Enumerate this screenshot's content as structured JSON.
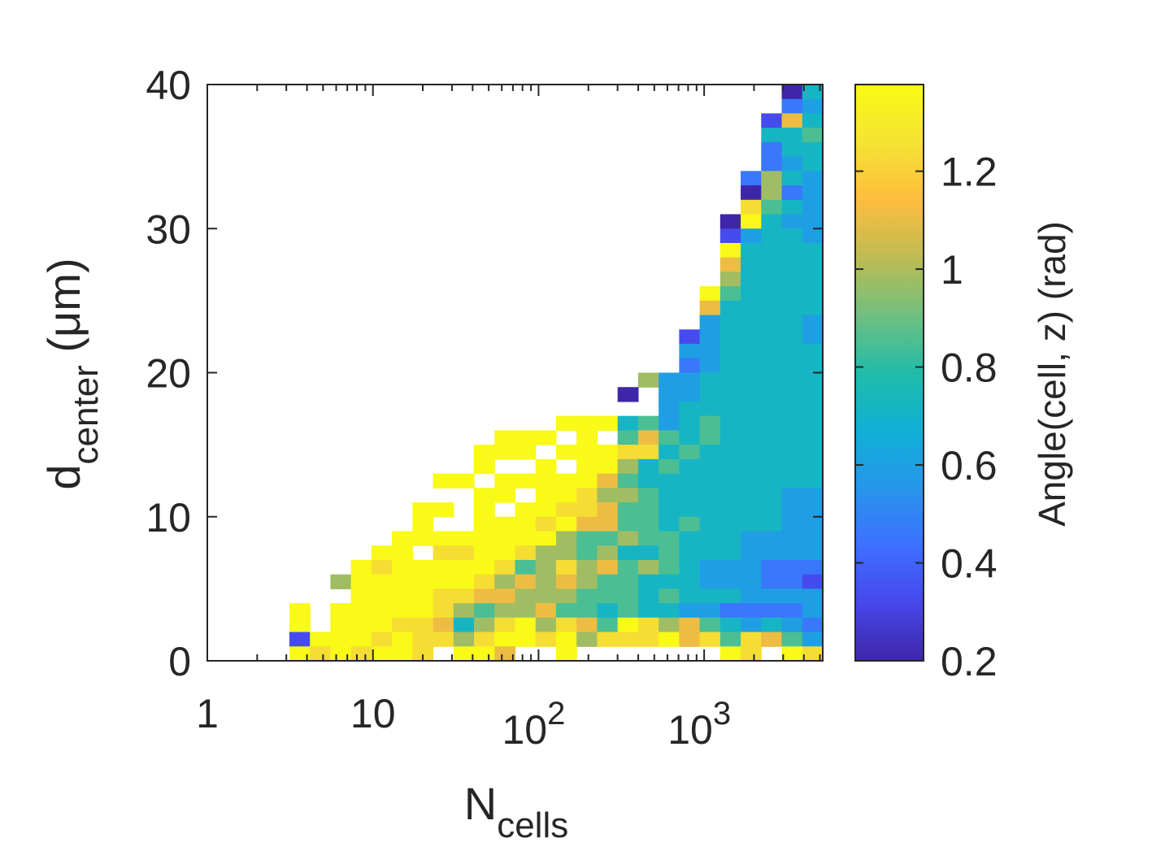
{
  "chart_data": {
    "type": "heatmap",
    "xlabel": {
      "main": "N",
      "sub": "cells"
    },
    "ylabel": {
      "main": "d",
      "sub": "center",
      "unit": " (μm)"
    },
    "colorbar_label": "Angle(cell, z) (rad)",
    "x_scale": "log",
    "xlim": [
      1,
      5200
    ],
    "ylim": [
      0,
      40
    ],
    "x_ticks": [
      {
        "value": 1,
        "base": "1",
        "exp": ""
      },
      {
        "value": 10,
        "base": "10",
        "exp": ""
      },
      {
        "value": 100,
        "base": "10",
        "exp": "2"
      },
      {
        "value": 1000,
        "base": "10",
        "exp": "3"
      }
    ],
    "y_ticks": [
      0,
      10,
      20,
      30,
      40
    ],
    "y_tick_labels": [
      "0",
      "10",
      "20",
      "30",
      "40"
    ],
    "clim": [
      0.2,
      1.377
    ],
    "colorbar_ticks": [
      0.2,
      0.4,
      0.6,
      0.8,
      1,
      1.2
    ],
    "colorbar_tick_labels": [
      "0.2",
      "0.4",
      "0.6",
      "0.8",
      "1",
      "1.2"
    ],
    "colormap": "parula",
    "colormap_stops": [
      "#3e26a8",
      "#4747eb",
      "#3e6fff",
      "#2796eb",
      "#0fb0d5",
      "#21bca9",
      "#71bf80",
      "#bdbc52",
      "#febd3e",
      "#f5e332",
      "#f9fb15"
    ],
    "grid": false,
    "cells_encoding": "rows from top (y 39-40) to bottom (y 0-1); 30 log-spaced x bins spanning xlim; char k = value 0.2 + 0.13*k; '.' = empty",
    "row_bin_um": 1,
    "rows": [
      "............................04",
      "............................23",
      "...........................174",
      "...........................445",
      "...........................244",
      "...........................234",
      "..........................2643",
      "..........................0623",
      "..........................8543",
      ".........................09433",
      ".........................13443",
      ".........................94444",
      ".........................74444",
      ".........................64444",
      "........................954444",
      "........................744444",
      "........................344443",
      ".......................1344443",
      ".......................3344444",
      ".......................2344444",
      ".....................633444444",
      "....................0.33444444",
      "......................34444444",
      ".................9994534544444",
      "..............999.9.5754544444",
      ".............999.9998845444444",
      ".............9..9.996454444444",
      "...........99.9999975444444444",
      ".............99.99866544444433",
      "..........99.9.998875544444433",
      "..........9..99989775545444433",
      ".........999999996556554443333",
      "........99.8899866564454443333",
      ".......98999998568675654333222",
      "......699999986767655444333221",
      ".......99998877666555454443333",
      "....9.999998656675545443322223",
      "....9.999887468968759867543432",
      "....19998988689989688897858753",
      "....9898998.997..9.......98.98"
    ]
  }
}
